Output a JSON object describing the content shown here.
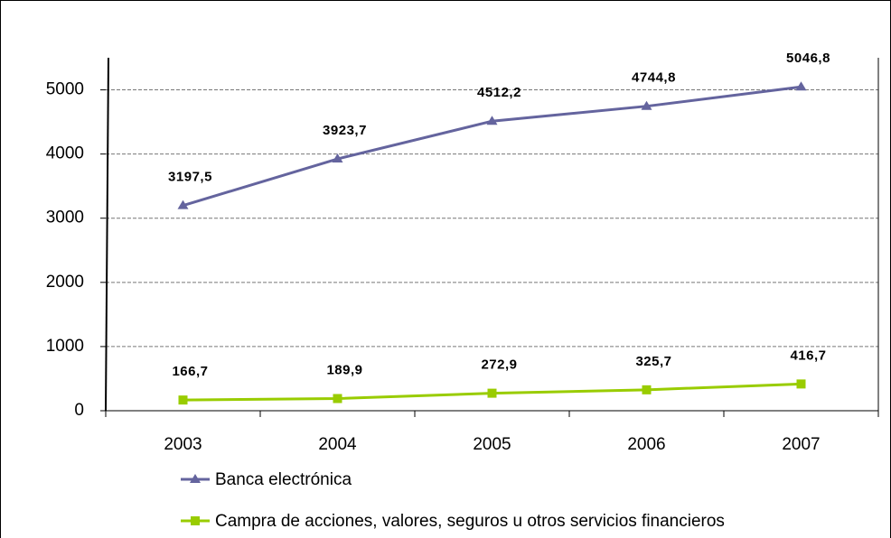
{
  "chart_data": {
    "type": "line",
    "categories": [
      "2003",
      "2004",
      "2005",
      "2006",
      "2007"
    ],
    "series": [
      {
        "name": "Banca electrónica",
        "color": "#64649e",
        "marker": "triangle",
        "values": [
          3197.5,
          3923.7,
          4512.2,
          4744.8,
          5046.8
        ],
        "value_labels": [
          "3197,5",
          "3923,7",
          "4512,2",
          "4744,8",
          "5046,8"
        ]
      },
      {
        "name": "Campra de acciones, valores, seguros u otros servicios financieros",
        "color": "#99cc00",
        "marker": "square",
        "values": [
          166.7,
          189.9,
          272.9,
          325.7,
          416.7
        ],
        "value_labels": [
          "166,7",
          "189,9",
          "272,9",
          "325,7",
          "416,7"
        ]
      }
    ],
    "ylim": [
      0,
      5500
    ],
    "yticks": [
      0,
      1000,
      2000,
      3000,
      4000,
      5000
    ],
    "grid": true
  }
}
